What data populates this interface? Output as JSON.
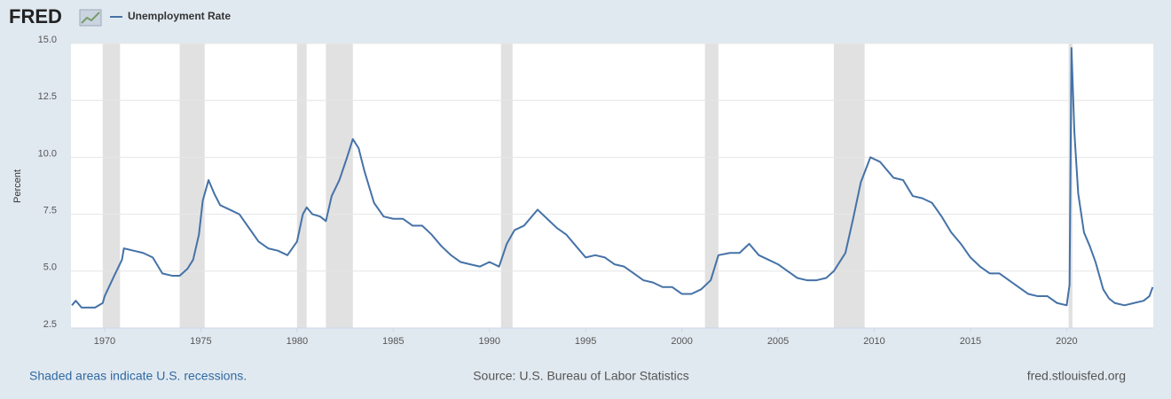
{
  "logo": "FRED",
  "chart_data": {
    "type": "line",
    "y_label": "Percent",
    "x": [
      1968.3,
      1968.5,
      1968.8,
      1969.5,
      1969.9,
      1970.0,
      1970.5,
      1970.9,
      1971.0,
      1971.5,
      1972.0,
      1972.5,
      1973.0,
      1973.5,
      1973.9,
      1974.3,
      1974.6,
      1974.9,
      1975.1,
      1975.4,
      1975.7,
      1976.0,
      1976.5,
      1977.0,
      1977.5,
      1978.0,
      1978.5,
      1979.0,
      1979.5,
      1980.0,
      1980.3,
      1980.5,
      1980.8,
      1981.2,
      1981.5,
      1981.8,
      1982.2,
      1982.6,
      1982.9,
      1983.2,
      1983.5,
      1984.0,
      1984.5,
      1985.0,
      1985.5,
      1986.0,
      1986.5,
      1987.0,
      1987.5,
      1988.0,
      1988.5,
      1989.0,
      1989.5,
      1990.0,
      1990.5,
      1990.9,
      1991.3,
      1991.8,
      1992.5,
      1993.0,
      1993.5,
      1994.0,
      1994.5,
      1995.0,
      1995.5,
      1996.0,
      1996.5,
      1997.0,
      1997.5,
      1998.0,
      1998.5,
      1999.0,
      1999.5,
      2000.0,
      2000.5,
      2001.0,
      2001.5,
      2001.9,
      2002.5,
      2003.0,
      2003.5,
      2004.0,
      2004.5,
      2005.0,
      2005.5,
      2006.0,
      2006.5,
      2007.0,
      2007.5,
      2007.9,
      2008.5,
      2008.9,
      2009.3,
      2009.8,
      2010.3,
      2010.7,
      2011.0,
      2011.5,
      2012.0,
      2012.5,
      2013.0,
      2013.5,
      2014.0,
      2014.5,
      2015.0,
      2015.5,
      2016.0,
      2016.5,
      2017.0,
      2017.5,
      2018.0,
      2018.5,
      2019.0,
      2019.5,
      2020.0,
      2020.15,
      2020.25,
      2020.4,
      2020.6,
      2020.9,
      2021.2,
      2021.5,
      2021.9,
      2022.2,
      2022.5,
      2023.0,
      2023.5,
      2024.0,
      2024.3,
      2024.47
    ],
    "series": [
      {
        "name": "Unemployment Rate",
        "color": "#4572a7",
        "values": [
          3.5,
          3.7,
          3.4,
          3.4,
          3.6,
          3.9,
          4.8,
          5.5,
          6.0,
          5.9,
          5.8,
          5.6,
          4.9,
          4.8,
          4.8,
          5.1,
          5.5,
          6.6,
          8.1,
          9.0,
          8.4,
          7.9,
          7.7,
          7.5,
          6.9,
          6.3,
          6.0,
          5.9,
          5.7,
          6.3,
          7.5,
          7.8,
          7.5,
          7.4,
          7.2,
          8.3,
          9.0,
          10.0,
          10.8,
          10.4,
          9.4,
          8.0,
          7.4,
          7.3,
          7.3,
          7.0,
          7.0,
          6.6,
          6.1,
          5.7,
          5.4,
          5.3,
          5.2,
          5.4,
          5.2,
          6.2,
          6.8,
          7.0,
          7.7,
          7.3,
          6.9,
          6.6,
          6.1,
          5.6,
          5.7,
          5.6,
          5.3,
          5.2,
          4.9,
          4.6,
          4.5,
          4.3,
          4.3,
          4.0,
          4.0,
          4.2,
          4.6,
          5.7,
          5.8,
          5.8,
          6.2,
          5.7,
          5.5,
          5.3,
          5.0,
          4.7,
          4.6,
          4.6,
          4.7,
          5.0,
          5.8,
          7.3,
          8.9,
          10.0,
          9.8,
          9.4,
          9.1,
          9.0,
          8.3,
          8.2,
          8.0,
          7.4,
          6.7,
          6.2,
          5.6,
          5.2,
          4.9,
          4.9,
          4.6,
          4.3,
          4.0,
          3.9,
          3.9,
          3.6,
          3.5,
          4.4,
          14.8,
          11.1,
          8.4,
          6.7,
          6.1,
          5.4,
          4.2,
          3.8,
          3.6,
          3.5,
          3.6,
          3.7,
          3.9,
          4.3
        ]
      }
    ],
    "recessions": [
      [
        1969.9,
        1970.8
      ],
      [
        1973.9,
        1975.2
      ],
      [
        1980.0,
        1980.5
      ],
      [
        1981.5,
        1982.9
      ],
      [
        1990.6,
        1991.2
      ],
      [
        2001.2,
        2001.9
      ],
      [
        2007.9,
        2009.5
      ],
      [
        2020.1,
        2020.3
      ]
    ],
    "recession_color": "#e1e1e1",
    "xlim": [
      1968.25,
      2024.5
    ],
    "xticks": [
      1970,
      1975,
      1980,
      1985,
      1990,
      1995,
      2000,
      2005,
      2010,
      2015,
      2020
    ],
    "ylim": [
      2.5,
      15
    ],
    "yticks": [
      2.5,
      {
        "value": 5,
        "label": "5.0"
      },
      {
        "value": 7.5,
        "label": "7.5"
      },
      {
        "value": 10,
        "label": "10.0"
      },
      12.5,
      {
        "value": 15,
        "label": "15.0"
      }
    ],
    "grid": true
  },
  "footer": {
    "note": "Shaded areas indicate U.S. recessions.",
    "source": "Source: U.S. Bureau of Labor Statistics",
    "site": "fred.stlouisfed.org"
  }
}
